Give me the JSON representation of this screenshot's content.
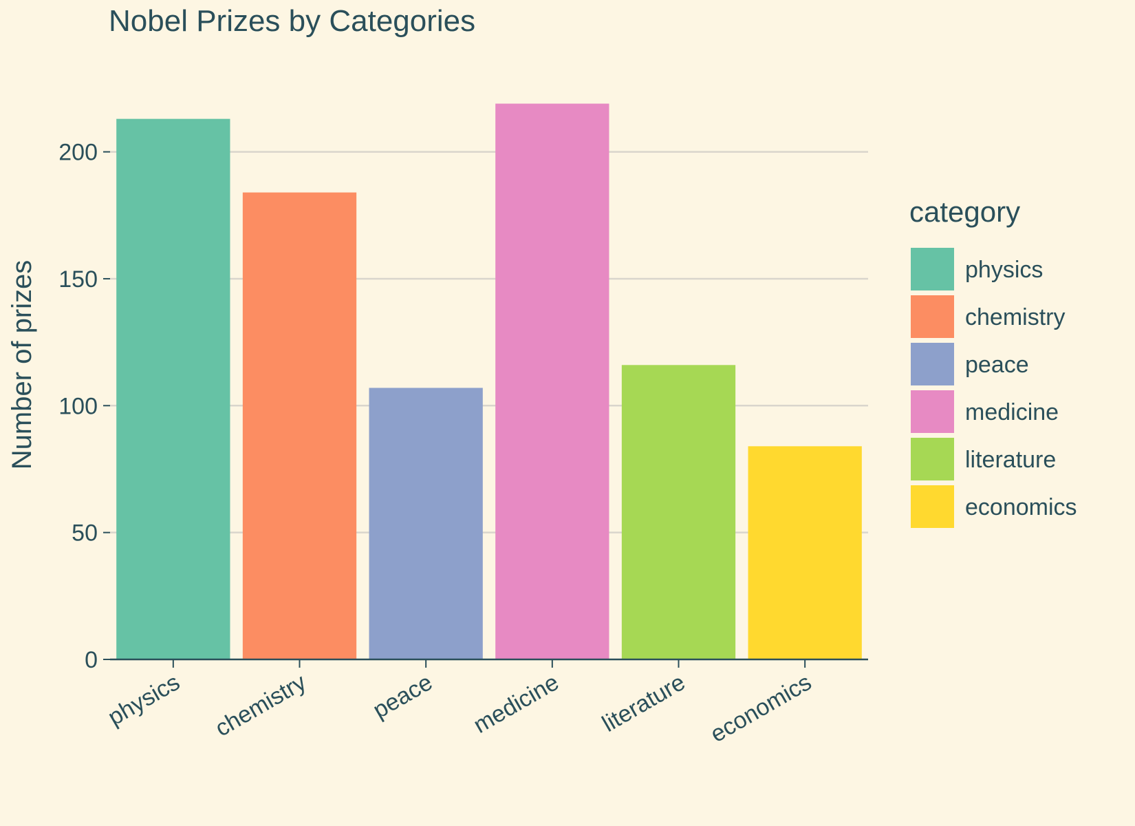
{
  "chart_data": {
    "type": "bar",
    "title": "Nobel Prizes by Categories",
    "xlabel": "",
    "ylabel": "Number of prizes",
    "categories": [
      "physics",
      "chemistry",
      "peace",
      "medicine",
      "literature",
      "economics"
    ],
    "values": [
      213,
      184,
      107,
      219,
      116,
      84
    ],
    "colors": [
      "#66c2a5",
      "#fc8d62",
      "#8da0cb",
      "#e78ac3",
      "#a6d854",
      "#ffd92f"
    ],
    "ylim": [
      0,
      230
    ],
    "yticks": [
      0,
      50,
      100,
      150,
      200
    ],
    "grid": true,
    "legend": {
      "title": "category",
      "position": "right",
      "entries": [
        "physics",
        "chemistry",
        "peace",
        "medicine",
        "literature",
        "economics"
      ]
    }
  },
  "style": {
    "background": "#fdf6e3",
    "text_color": "#2a4f5a",
    "grid_color": "#d9d5cc",
    "axis_color": "#2a4f5a"
  }
}
